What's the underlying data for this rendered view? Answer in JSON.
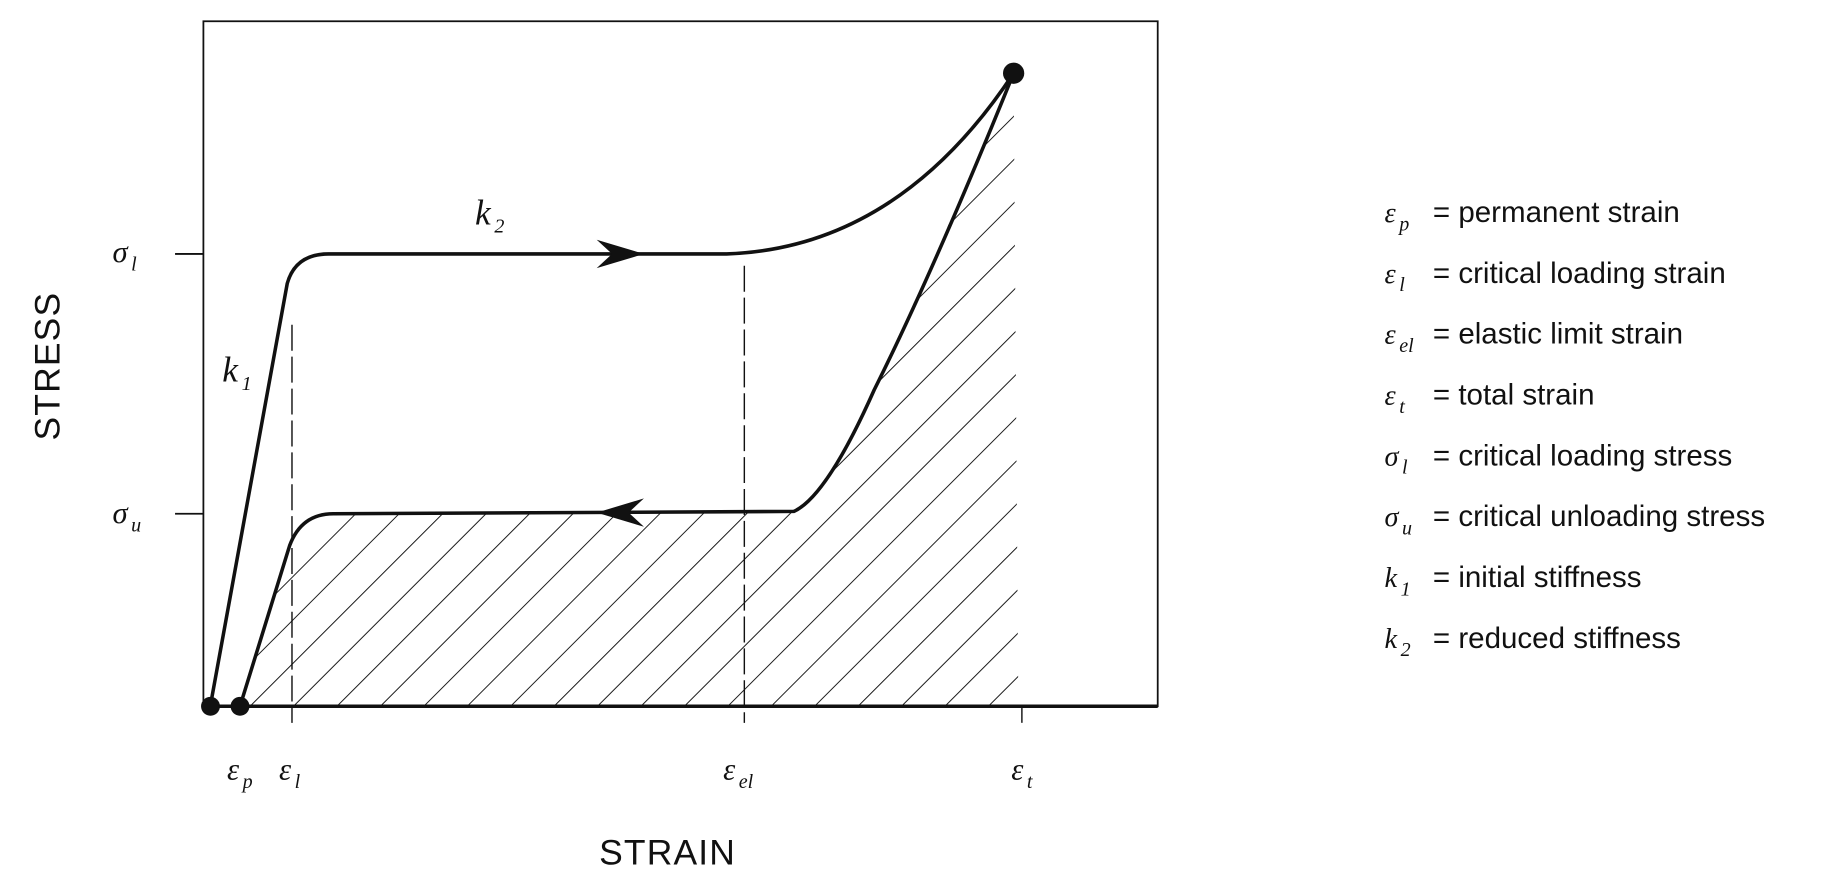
{
  "axes": {
    "y_label": "STRESS",
    "x_label": "STRAIN"
  },
  "y_ticks": [
    {
      "symbol": "σ",
      "sub": "l"
    },
    {
      "symbol": "σ",
      "sub": "u"
    }
  ],
  "x_ticks": [
    {
      "symbol": "ε",
      "sub": "p"
    },
    {
      "symbol": "ε",
      "sub": "l"
    },
    {
      "symbol": "ε",
      "sub": "el"
    },
    {
      "symbol": "ε",
      "sub": "t"
    }
  ],
  "curve_labels": [
    {
      "symbol": "k",
      "sub": "2"
    },
    {
      "symbol": "k",
      "sub": "1"
    }
  ],
  "legend": [
    {
      "symbol": "ε",
      "sub": "p",
      "text": "= permanent strain"
    },
    {
      "symbol": "ε",
      "sub": "l",
      "text": "= critical loading strain"
    },
    {
      "symbol": "ε",
      "sub": "el",
      "text": "= elastic limit strain"
    },
    {
      "symbol": "ε",
      "sub": "t",
      "text": "= total strain"
    },
    {
      "symbol": "σ",
      "sub": "l",
      "text": "= critical loading stress"
    },
    {
      "symbol": "σ",
      "sub": "u",
      "text": "= critical unloading stress"
    },
    {
      "symbol": "k",
      "sub": "1",
      "text": "= initial stiffness"
    },
    {
      "symbol": "k",
      "sub": "2",
      "text": "= reduced stiffness"
    }
  ]
}
